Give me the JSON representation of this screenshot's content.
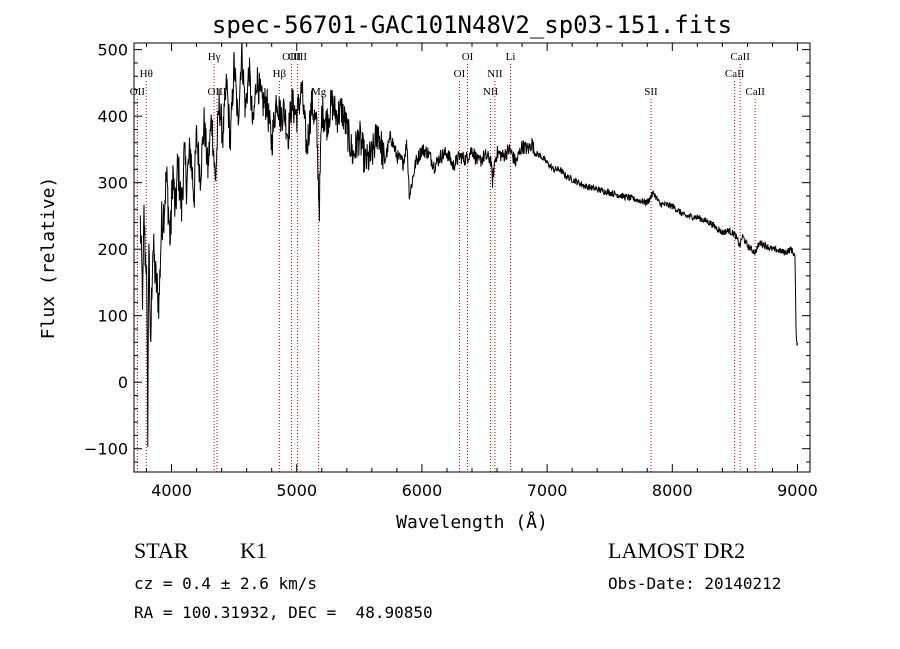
{
  "chart_data": {
    "type": "line",
    "title": "spec-56701-GAC101N48V2_sp03-151.fits",
    "xlabel": "Wavelength (Å)",
    "ylabel": "Flux (relative)",
    "xlim": [
      3700,
      9100
    ],
    "ylim": [
      -135,
      510
    ],
    "xticks": [
      4000,
      5000,
      6000,
      7000,
      8000,
      9000
    ],
    "yticks": [
      -100,
      0,
      100,
      200,
      300,
      400,
      500
    ],
    "grid": false,
    "line_color": "#000000",
    "marker_color": "#cc0000",
    "spectrum": {
      "x": [
        3750,
        3770,
        3780,
        3790,
        3800,
        3810,
        3820,
        3830,
        3850,
        3870,
        3900,
        3920,
        3940,
        3960,
        3990,
        4010,
        4030,
        4050,
        4080,
        4100,
        4120,
        4150,
        4180,
        4200,
        4230,
        4260,
        4290,
        4320,
        4350,
        4380,
        4410,
        4440,
        4470,
        4500,
        4530,
        4560,
        4590,
        4620,
        4650,
        4680,
        4720,
        4760,
        4800,
        4840,
        4870,
        4900,
        4930,
        4960,
        5000,
        5040,
        5080,
        5120,
        5160,
        5180,
        5200,
        5240,
        5280,
        5320,
        5360,
        5400,
        5450,
        5500,
        5550,
        5600,
        5650,
        5700,
        5750,
        5800,
        5850,
        5880,
        5900,
        5950,
        6000,
        6050,
        6100,
        6150,
        6200,
        6250,
        6300,
        6350,
        6400,
        6450,
        6500,
        6550,
        6563,
        6580,
        6600,
        6650,
        6700,
        6750,
        6800,
        6850,
        6880,
        6900,
        6950,
        7000,
        7050,
        7100,
        7150,
        7200,
        7300,
        7400,
        7500,
        7600,
        7700,
        7800,
        7850,
        7900,
        8000,
        8100,
        8200,
        8300,
        8400,
        8450,
        8500,
        8540,
        8560,
        8600,
        8660,
        8700,
        8800,
        8850,
        8900,
        8950,
        8980,
        8990,
        9000
      ],
      "y": [
        240,
        120,
        250,
        190,
        180,
        -70,
        250,
        30,
        210,
        160,
        120,
        240,
        260,
        310,
        210,
        320,
        250,
        330,
        260,
        340,
        300,
        350,
        280,
        370,
        310,
        390,
        320,
        400,
        300,
        420,
        370,
        450,
        360,
        480,
        390,
        500,
        410,
        470,
        380,
        460,
        420,
        420,
        360,
        430,
        400,
        410,
        370,
        420,
        400,
        440,
        350,
        420,
        380,
        260,
        410,
        390,
        420,
        400,
        410,
        380,
        340,
        370,
        330,
        340,
        380,
        330,
        370,
        340,
        330,
        360,
        280,
        330,
        350,
        345,
        325,
        340,
        345,
        325,
        340,
        335,
        350,
        330,
        340,
        335,
        300,
        330,
        345,
        340,
        350,
        330,
        355,
        350,
        360,
        345,
        340,
        330,
        320,
        320,
        310,
        305,
        295,
        290,
        285,
        280,
        275,
        270,
        285,
        268,
        265,
        250,
        248,
        240,
        225,
        228,
        222,
        205,
        220,
        205,
        195,
        210,
        200,
        198,
        195,
        200,
        190,
        60,
        60
      ]
    },
    "lines": [
      {
        "label": "Hθ",
        "x": 3798,
        "row": 1
      },
      {
        "label": "OII",
        "x": 3727,
        "row": 2
      },
      {
        "label": "Hγ",
        "x": 4340,
        "row": 0
      },
      {
        "label": "OIII",
        "x": 4363,
        "row": 2
      },
      {
        "label": "Hβ",
        "x": 4861,
        "row": 1
      },
      {
        "label": "OIII",
        "x": 4959,
        "row": 0
      },
      {
        "label": "OIII",
        "x": 5007,
        "row": 0
      },
      {
        "label": "Mg",
        "x": 5175,
        "row": 2
      },
      {
        "label": "OI",
        "x": 6300,
        "row": 1
      },
      {
        "label": "OI",
        "x": 6364,
        "row": 0
      },
      {
        "label": "NII",
        "x": 6548,
        "row": 2
      },
      {
        "label": "NII",
        "x": 6583,
        "row": 1
      },
      {
        "label": "Li",
        "x": 6708,
        "row": 0
      },
      {
        "label": "SII",
        "x": 7830,
        "row": 2
      },
      {
        "label": "CaII",
        "x": 8498,
        "row": 1
      },
      {
        "label": "CaII",
        "x": 8542,
        "row": 0
      },
      {
        "label": "CaII",
        "x": 8662,
        "row": 2
      }
    ]
  },
  "info": {
    "class": "STAR",
    "subclass": "K1",
    "survey": "LAMOST DR2",
    "cz": "cz = 0.4 ± 2.6 km/s",
    "obs_date": "Obs-Date: 20140212",
    "coords": "RA = 100.31932, DEC =  48.90850"
  }
}
